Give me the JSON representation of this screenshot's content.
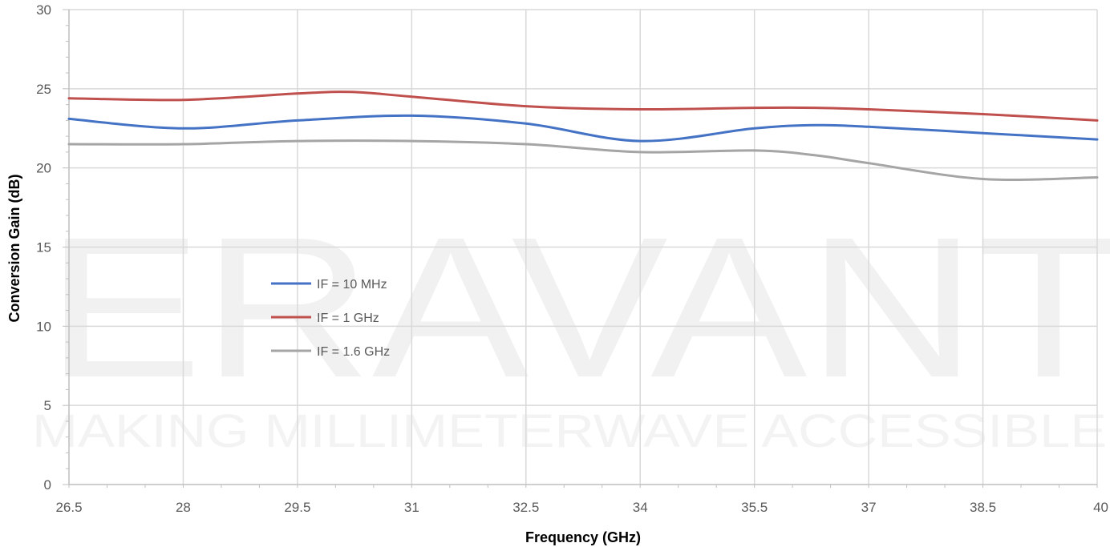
{
  "watermark": {
    "brand": "ERAVANT",
    "tagline": "MAKING MILLIMETERWAVE ACCESSIBLE"
  },
  "chart_data": {
    "type": "line",
    "xlabel": "Frequency (GHz)",
    "ylabel": "Conversion Gain (dB)",
    "xlim": [
      26.5,
      40
    ],
    "ylim": [
      0,
      30
    ],
    "x_ticks": [
      "26.5",
      "28",
      "29.5",
      "31",
      "32.5",
      "34",
      "35.5",
      "37",
      "38.5",
      "40"
    ],
    "y_ticks": [
      "0",
      "5",
      "10",
      "15",
      "20",
      "25",
      "30"
    ],
    "grid": true,
    "legend_position": "center-left",
    "series": [
      {
        "name": "IF = 10 MHz",
        "color": "#4472c4",
        "x": [
          26.5,
          28,
          29.5,
          31,
          32.5,
          34,
          35.5,
          36.3,
          37,
          38.5,
          40
        ],
        "y": [
          23.1,
          22.5,
          23.0,
          23.3,
          22.8,
          21.7,
          22.5,
          22.7,
          22.6,
          22.2,
          21.8
        ]
      },
      {
        "name": "IF = 1 GHz",
        "color": "#c0504d",
        "x": [
          26.5,
          28,
          29.5,
          30.2,
          31,
          32.5,
          34,
          35.5,
          36.3,
          37,
          38.5,
          40
        ],
        "y": [
          24.4,
          24.3,
          24.7,
          24.8,
          24.5,
          23.9,
          23.7,
          23.8,
          23.8,
          23.7,
          23.4,
          23.0
        ]
      },
      {
        "name": "IF = 1.6 GHz",
        "color": "#a5a5a5",
        "x": [
          26.5,
          28,
          29.5,
          31,
          32.5,
          34,
          35.5,
          36.3,
          37,
          38.5,
          40
        ],
        "y": [
          21.5,
          21.5,
          21.7,
          21.7,
          21.5,
          21.0,
          21.1,
          20.8,
          20.3,
          19.3,
          19.4
        ]
      }
    ]
  }
}
